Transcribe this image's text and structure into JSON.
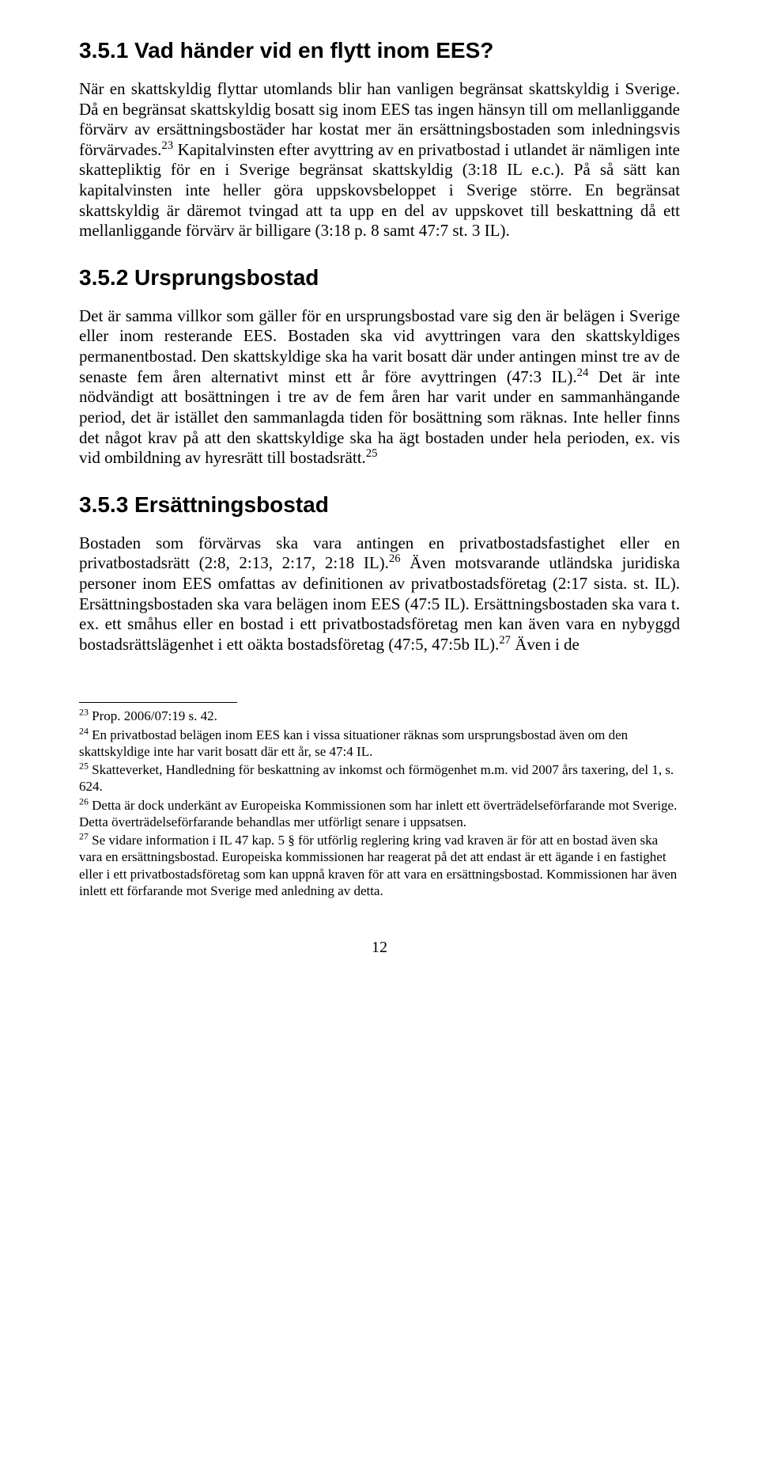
{
  "section351": {
    "heading": "3.5.1 Vad händer vid en flytt inom EES?",
    "para": "När en skattskyldig flyttar utomlands blir han vanligen begränsat skattskyldig i Sverige. Då en begränsat skattskyldig bosatt sig inom EES tas ingen hänsyn till om mellanliggande förvärv av ersättningsbostäder har kostat mer än ersättningsbostaden som inledningsvis förvärvades.<sup>23</sup> Kapitalvinsten efter avyttring av en privatbostad i utlandet är nämligen inte skattepliktig för en i Sverige begränsat skattskyldig (3:18 IL e.c.). På så sätt kan kapitalvinsten inte heller göra uppskovsbeloppet i Sverige större. En begränsat skattskyldig är däremot tvingad att ta upp en del av uppskovet till beskattning då ett mellanliggande förvärv är billigare (3:18 p. 8 samt 47:7 st. 3 IL)."
  },
  "section352": {
    "heading": "3.5.2 Ursprungsbostad",
    "para": "Det är samma villkor som gäller för en ursprungsbostad vare sig den är belägen i Sverige eller inom resterande EES. Bostaden ska vid avyttringen vara den skattskyldiges permanentbostad. Den skattskyldige ska ha varit bosatt där under antingen minst tre av de senaste fem åren alternativt minst ett år före avyttringen (47:3 IL).<sup>24</sup> Det är inte nödvändigt att bosättningen i tre av de fem åren har varit under en sammanhängande period, det är istället den sammanlagda tiden för bosättning som räknas. Inte heller finns det något krav på att den skattskyldige ska ha ägt bostaden under hela perioden, ex. vis vid ombildning av hyresrätt till bostadsrätt.<sup>25</sup>"
  },
  "section353": {
    "heading": "3.5.3 Ersättningsbostad",
    "para": "Bostaden som förvärvas ska vara antingen en privatbostadsfastighet eller en privatbostadsrätt (2:8, 2:13, 2:17, 2:18 IL).<sup>26</sup> Även motsvarande utländska juridiska personer inom EES omfattas av definitionen av privatbostadsföretag (2:17 sista. st. IL). Ersättningsbostaden ska vara belägen inom EES (47:5 IL). Ersättningsbostaden ska vara t. ex. ett småhus eller en bostad i ett privatbostadsföretag men kan även vara en nybyggd bostadsrättslägenhet i ett oäkta bostadsföretag (47:5, 47:5b IL).<sup>27</sup> Även i de"
  },
  "footnotes": {
    "f23": "<sup>23</sup> Prop. 2006/07:19 s. 42.",
    "f24": "<sup>24</sup> En privatbostad belägen inom EES kan i vissa situationer räknas som ursprungsbostad även om den skattskyldige inte har varit bosatt där ett år, se 47:4 IL.",
    "f25": "<sup>25</sup> Skatteverket, Handledning för beskattning av inkomst och förmögenhet m.m. vid 2007 års taxering, del 1, s. 624.",
    "f26": "<sup>26</sup> Detta är dock underkänt av Europeiska Kommissionen som har inlett ett överträdelseförfarande mot Sverige. Detta överträdelseförfarande behandlas mer utförligt senare i uppsatsen.",
    "f27": "<sup>27</sup> Se vidare information i IL 47 kap. 5 § för utförlig reglering kring vad kraven är för att en bostad även ska vara en ersättningsbostad. Europeiska kommissionen har reagerat på det att endast är ett ägande i en fastighet eller i ett privatbostadsföretag som kan uppnå kraven för att vara en ersättningsbostad. Kommissionen har även inlett ett förfarande mot Sverige med anledning av detta."
  },
  "pagenum": "12"
}
